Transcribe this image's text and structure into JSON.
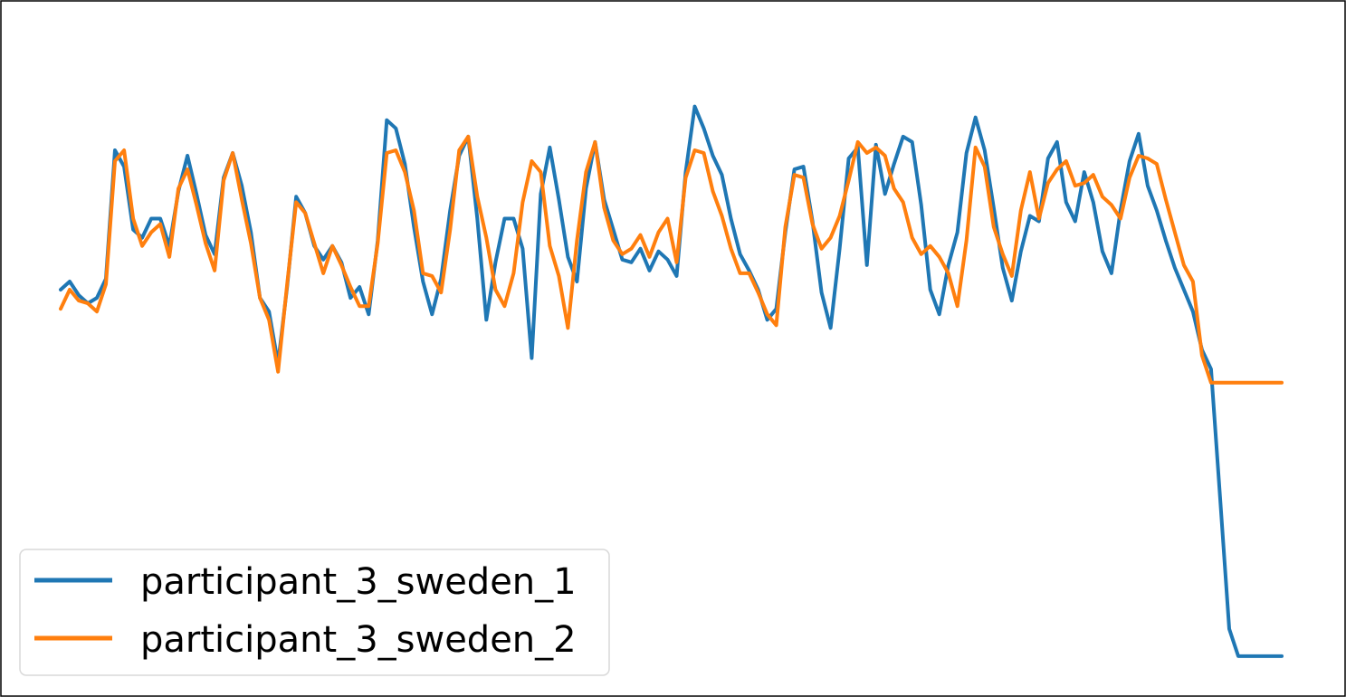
{
  "chart_data": {
    "type": "line",
    "title": "",
    "xlabel": "",
    "ylabel": "",
    "axes_visible": false,
    "grid": false,
    "legend_position": "bottom-left",
    "x": [
      0,
      10,
      20,
      30,
      40,
      50,
      60,
      70,
      80,
      90,
      100,
      110,
      120,
      130,
      140,
      150,
      160,
      170,
      180,
      190,
      200,
      210,
      220,
      230,
      240,
      250,
      260,
      270,
      280,
      290,
      300,
      310,
      320,
      330,
      340,
      350,
      360,
      370,
      380,
      390,
      400,
      410,
      420,
      430,
      440,
      450,
      460,
      470,
      480,
      490,
      500,
      510,
      520,
      530,
      540,
      550,
      560,
      570,
      580,
      590,
      600,
      610,
      620,
      630,
      640,
      650,
      660,
      670,
      680,
      690,
      700,
      710,
      720,
      730,
      740,
      750,
      760,
      770,
      780,
      790,
      800,
      810,
      820,
      830,
      840,
      850,
      860,
      870,
      880,
      890,
      900,
      910,
      920,
      930,
      940,
      950,
      960,
      970,
      980,
      990,
      1000,
      1010,
      1020,
      1030,
      1040,
      1050,
      1060,
      1070,
      1080,
      1090,
      1100,
      1110,
      1120,
      1130,
      1140,
      1150,
      1160,
      1170,
      1180,
      1190,
      1200,
      1210,
      1220,
      1230,
      1240,
      1250,
      1260,
      1270,
      1280,
      1290,
      1300,
      1310,
      1320,
      1330,
      1340,
      1350
    ],
    "ylim": [
      -1.05,
      1.3
    ],
    "series": [
      {
        "name": "participant_3_sweden_1",
        "color": "#1f77b4",
        "values": [
          0.34,
          0.37,
          0.32,
          0.29,
          0.31,
          0.38,
          0.85,
          0.79,
          0.56,
          0.53,
          0.6,
          0.6,
          0.5,
          0.7,
          0.83,
          0.69,
          0.54,
          0.47,
          0.75,
          0.84,
          0.72,
          0.55,
          0.31,
          0.26,
          0.07,
          0.35,
          0.68,
          0.62,
          0.5,
          0.45,
          0.5,
          0.44,
          0.31,
          0.35,
          0.25,
          0.52,
          0.96,
          0.93,
          0.8,
          0.57,
          0.37,
          0.25,
          0.38,
          0.63,
          0.83,
          0.9,
          0.6,
          0.23,
          0.44,
          0.6,
          0.6,
          0.49,
          0.09,
          0.69,
          0.86,
          0.67,
          0.46,
          0.37,
          0.71,
          0.88,
          0.67,
          0.56,
          0.45,
          0.44,
          0.49,
          0.41,
          0.48,
          0.45,
          0.39,
          0.77,
          1.01,
          0.93,
          0.83,
          0.76,
          0.6,
          0.47,
          0.41,
          0.34,
          0.23,
          0.27,
          0.55,
          0.78,
          0.79,
          0.59,
          0.33,
          0.2,
          0.49,
          0.82,
          0.86,
          0.43,
          0.87,
          0.69,
          0.8,
          0.9,
          0.88,
          0.65,
          0.34,
          0.25,
          0.43,
          0.55,
          0.84,
          0.97,
          0.85,
          0.64,
          0.42,
          0.3,
          0.48,
          0.61,
          0.59,
          0.82,
          0.88,
          0.66,
          0.59,
          0.77,
          0.66,
          0.48,
          0.4,
          0.63,
          0.81,
          0.91,
          0.72,
          0.63,
          0.52,
          0.42,
          0.34,
          0.26,
          0.12,
          0.05,
          -0.42,
          -0.9,
          -1.0,
          -1.0,
          -1.0,
          -1.0,
          -1.0,
          -1.0
        ],
        "end": [
          1348,
          -1.0
        ]
      },
      {
        "name": "participant_3_sweden_2",
        "color": "#ff7f0e",
        "values": [
          0.27,
          0.34,
          0.3,
          0.29,
          0.26,
          0.36,
          0.81,
          0.85,
          0.6,
          0.5,
          0.55,
          0.58,
          0.46,
          0.71,
          0.78,
          0.65,
          0.51,
          0.41,
          0.74,
          0.84,
          0.67,
          0.51,
          0.31,
          0.23,
          0.04,
          0.36,
          0.66,
          0.62,
          0.51,
          0.4,
          0.5,
          0.43,
          0.35,
          0.28,
          0.28,
          0.51,
          0.84,
          0.85,
          0.77,
          0.63,
          0.4,
          0.39,
          0.33,
          0.56,
          0.85,
          0.9,
          0.68,
          0.53,
          0.34,
          0.28,
          0.4,
          0.66,
          0.81,
          0.77,
          0.5,
          0.39,
          0.2,
          0.52,
          0.77,
          0.88,
          0.64,
          0.52,
          0.47,
          0.49,
          0.54,
          0.46,
          0.55,
          0.6,
          0.44,
          0.75,
          0.85,
          0.84,
          0.7,
          0.61,
          0.49,
          0.4,
          0.4,
          0.33,
          0.25,
          0.21,
          0.57,
          0.76,
          0.75,
          0.58,
          0.49,
          0.53,
          0.61,
          0.74,
          0.88,
          0.84,
          0.86,
          0.83,
          0.71,
          0.66,
          0.53,
          0.47,
          0.5,
          0.46,
          0.4,
          0.28,
          0.52,
          0.86,
          0.79,
          0.57,
          0.47,
          0.39,
          0.63,
          0.77,
          0.6,
          0.73,
          0.78,
          0.81,
          0.72,
          0.73,
          0.76,
          0.68,
          0.65,
          0.6,
          0.75,
          0.83,
          0.82,
          0.8,
          0.67,
          0.55,
          0.43,
          0.37,
          0.1,
          0.0,
          0.0,
          0.0,
          0.0,
          0.0,
          0.0,
          0.0,
          0.0,
          0.0
        ],
        "end": [
          1348,
          0.0
        ]
      }
    ]
  }
}
